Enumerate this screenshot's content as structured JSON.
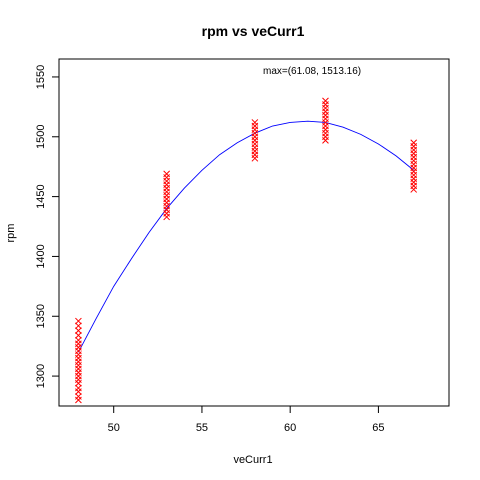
{
  "chart_data": {
    "type": "scatter",
    "title": "rpm vs veCurr1",
    "xlabel": "veCurr1",
    "ylabel": "rpm",
    "xlim": [
      46.9,
      69.0
    ],
    "ylim": [
      1275,
      1565
    ],
    "xticks": [
      50,
      55,
      60,
      65
    ],
    "yticks": [
      1300,
      1350,
      1400,
      1450,
      1500,
      1550
    ],
    "annotation": "max=(61.08, 1513.16)",
    "grid": false,
    "colors": {
      "points": "#ff0000",
      "fit": "#0000ff",
      "axis": "#000000"
    },
    "point_groups": [
      {
        "x": 48,
        "y": [
          1280,
          1283,
          1287,
          1290,
          1294,
          1297,
          1300,
          1303,
          1306,
          1309,
          1312,
          1315,
          1318,
          1321,
          1324,
          1327,
          1330,
          1334,
          1338,
          1342,
          1346
        ]
      },
      {
        "x": 53,
        "y": [
          1433,
          1436,
          1439,
          1442,
          1445,
          1448,
          1451,
          1454,
          1457,
          1460,
          1463,
          1466,
          1469
        ]
      },
      {
        "x": 58,
        "y": [
          1482,
          1485,
          1488,
          1491,
          1494,
          1497,
          1500,
          1503,
          1506,
          1509,
          1512
        ]
      },
      {
        "x": 62,
        "y": [
          1497,
          1500,
          1503,
          1506,
          1509,
          1512,
          1515,
          1518,
          1521,
          1524,
          1527,
          1530
        ]
      },
      {
        "x": 67,
        "y": [
          1456,
          1459,
          1462,
          1465,
          1468,
          1471,
          1474,
          1477,
          1480,
          1483,
          1486,
          1489,
          1492,
          1495
        ]
      }
    ],
    "fit_curve": {
      "x": [
        48,
        49,
        50,
        51,
        52,
        53,
        54,
        55,
        56,
        57,
        58,
        59,
        60,
        61,
        62,
        63,
        64,
        65,
        66,
        67
      ],
      "y": [
        1320,
        1348,
        1375,
        1398,
        1420,
        1440,
        1457,
        1472,
        1485,
        1495,
        1503,
        1509,
        1512,
        1513,
        1512,
        1508,
        1502,
        1494,
        1484,
        1472
      ]
    }
  }
}
